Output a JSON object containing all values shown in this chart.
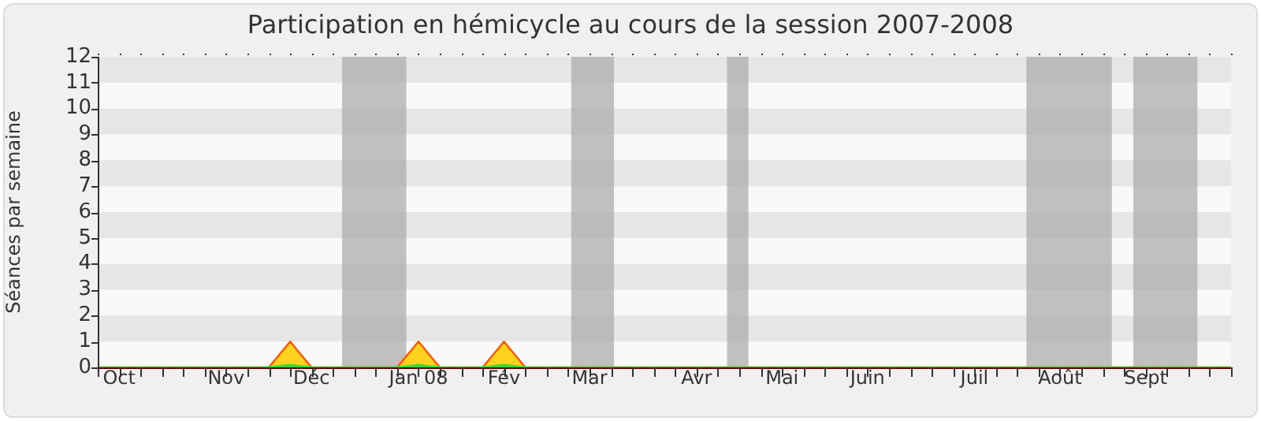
{
  "chart_data": {
    "type": "area",
    "title": "Participation en hémicycle au cours de la session 2007-2008",
    "ylabel": "Séances par semaine",
    "x": [
      "2007-09-24",
      "2007-10-01",
      "2007-10-08",
      "2007-10-15",
      "2007-10-22",
      "2007-10-29",
      "2007-11-05",
      "2007-11-12",
      "2007-11-19",
      "2007-11-26",
      "2007-12-03",
      "2007-12-10",
      "2007-12-17",
      "2007-12-24",
      "2007-12-31",
      "2008-01-07",
      "2008-01-14",
      "2008-01-21",
      "2008-01-28",
      "2008-02-04",
      "2008-02-11",
      "2008-02-18",
      "2008-02-25",
      "2008-03-03",
      "2008-03-10",
      "2008-03-17",
      "2008-03-24",
      "2008-03-31",
      "2008-04-07",
      "2008-04-14",
      "2008-04-21",
      "2008-04-28",
      "2008-05-05",
      "2008-05-12",
      "2008-05-19",
      "2008-05-26",
      "2008-06-02",
      "2008-06-09",
      "2008-06-16",
      "2008-06-23",
      "2008-06-30",
      "2008-07-07",
      "2008-07-14",
      "2008-07-21",
      "2008-07-28",
      "2008-08-04",
      "2008-08-11",
      "2008-08-18",
      "2008-08-25",
      "2008-09-01",
      "2008-09-08",
      "2008-09-15",
      "2008-09-22",
      "2008-09-29"
    ],
    "series": [
      {
        "color": "#ffd21e",
        "values": [
          0,
          0,
          0,
          0,
          0,
          0,
          0,
          0,
          0,
          1,
          0,
          0,
          0,
          0,
          0,
          1,
          0,
          0,
          0,
          1,
          0,
          0,
          0,
          0,
          0,
          0,
          0,
          0,
          0,
          0,
          0,
          0,
          0,
          0,
          0,
          0,
          0,
          0,
          0,
          0,
          0,
          0,
          0,
          0,
          0,
          0,
          0,
          0,
          0,
          0,
          0,
          0,
          0,
          0
        ]
      },
      {
        "color": "#33dd33",
        "values": [
          0,
          0,
          0,
          0,
          0,
          0,
          0,
          0,
          0,
          0.1,
          0,
          0,
          0,
          0,
          0,
          0.1,
          0,
          0,
          0,
          0.1,
          0,
          0,
          0,
          0,
          0,
          0,
          0,
          0,
          0,
          0,
          0,
          0,
          0,
          0,
          0,
          0,
          0,
          0,
          0,
          0,
          0,
          0,
          0,
          0,
          0,
          0,
          0,
          0,
          0,
          0,
          0,
          0,
          0,
          0
        ]
      }
    ],
    "xlim": [
      "2007-09-24",
      "2008-09-29"
    ],
    "xticks": [
      {
        "value": "2007-09-24",
        "label": null
      },
      {
        "value": "2007-10-01",
        "label": "Oct"
      },
      {
        "value": "2007-10-08",
        "label": null
      },
      {
        "value": "2007-10-15",
        "label": null
      },
      {
        "value": "2007-10-22",
        "label": null
      },
      {
        "value": "2007-10-29",
        "label": null
      },
      {
        "value": "2007-11-05",
        "label": "Nov"
      },
      {
        "value": "2007-11-12",
        "label": null
      },
      {
        "value": "2007-11-19",
        "label": null
      },
      {
        "value": "2007-11-26",
        "label": null
      },
      {
        "value": "2007-12-03",
        "label": "Déc"
      },
      {
        "value": "2007-12-10",
        "label": null
      },
      {
        "value": "2007-12-17",
        "label": null
      },
      {
        "value": "2007-12-24",
        "label": null
      },
      {
        "value": "2007-12-31",
        "label": null
      },
      {
        "value": "2008-01-07",
        "label": "Jan 08"
      },
      {
        "value": "2008-01-14",
        "label": null
      },
      {
        "value": "2008-01-21",
        "label": null
      },
      {
        "value": "2008-01-28",
        "label": null
      },
      {
        "value": "2008-02-04",
        "label": "Fév"
      },
      {
        "value": "2008-02-11",
        "label": null
      },
      {
        "value": "2008-02-18",
        "label": null
      },
      {
        "value": "2008-02-25",
        "label": null
      },
      {
        "value": "2008-03-03",
        "label": "Mar"
      },
      {
        "value": "2008-03-10",
        "label": null
      },
      {
        "value": "2008-03-17",
        "label": null
      },
      {
        "value": "2008-03-24",
        "label": null
      },
      {
        "value": "2008-03-31",
        "label": null
      },
      {
        "value": "2008-04-07",
        "label": "Avr"
      },
      {
        "value": "2008-04-14",
        "label": null
      },
      {
        "value": "2008-04-21",
        "label": null
      },
      {
        "value": "2008-04-28",
        "label": null
      },
      {
        "value": "2008-05-05",
        "label": "Mai"
      },
      {
        "value": "2008-05-12",
        "label": null
      },
      {
        "value": "2008-05-19",
        "label": null
      },
      {
        "value": "2008-05-26",
        "label": null
      },
      {
        "value": "2008-06-02",
        "label": "Juin"
      },
      {
        "value": "2008-06-09",
        "label": null
      },
      {
        "value": "2008-06-16",
        "label": null
      },
      {
        "value": "2008-06-23",
        "label": null
      },
      {
        "value": "2008-06-30",
        "label": null
      },
      {
        "value": "2008-07-07",
        "label": "Juil"
      },
      {
        "value": "2008-07-14",
        "label": null
      },
      {
        "value": "2008-07-21",
        "label": null
      },
      {
        "value": "2008-07-28",
        "label": null
      },
      {
        "value": "2008-08-04",
        "label": "Août"
      },
      {
        "value": "2008-08-11",
        "label": null
      },
      {
        "value": "2008-08-18",
        "label": null
      },
      {
        "value": "2008-08-25",
        "label": null
      },
      {
        "value": "2008-09-01",
        "label": "Sept"
      },
      {
        "value": "2008-09-08",
        "label": null
      },
      {
        "value": "2008-09-15",
        "label": null
      },
      {
        "value": "2008-09-22",
        "label": null
      },
      {
        "value": "2008-09-29",
        "label": null
      }
    ],
    "ylim": [
      0,
      12
    ],
    "yticks": [
      0,
      1,
      2,
      3,
      4,
      5,
      6,
      7,
      8,
      9,
      10,
      11,
      12
    ],
    "bands": [
      {
        "axis": "x",
        "from": "2007-12-13",
        "to": "2008-01-03",
        "color": "#a8a8a8"
      },
      {
        "axis": "x",
        "from": "2008-02-26",
        "to": "2008-03-11",
        "color": "#a8a8a8"
      },
      {
        "axis": "x",
        "from": "2008-04-17",
        "to": "2008-04-24",
        "color": "#a8a8a8"
      },
      {
        "axis": "x",
        "from": "2008-07-24",
        "to": "2008-08-21",
        "color": "#a8a8a8"
      },
      {
        "axis": "x",
        "from": "2008-08-28",
        "to": "2008-09-18",
        "color": "#a8a8a8"
      }
    ]
  }
}
